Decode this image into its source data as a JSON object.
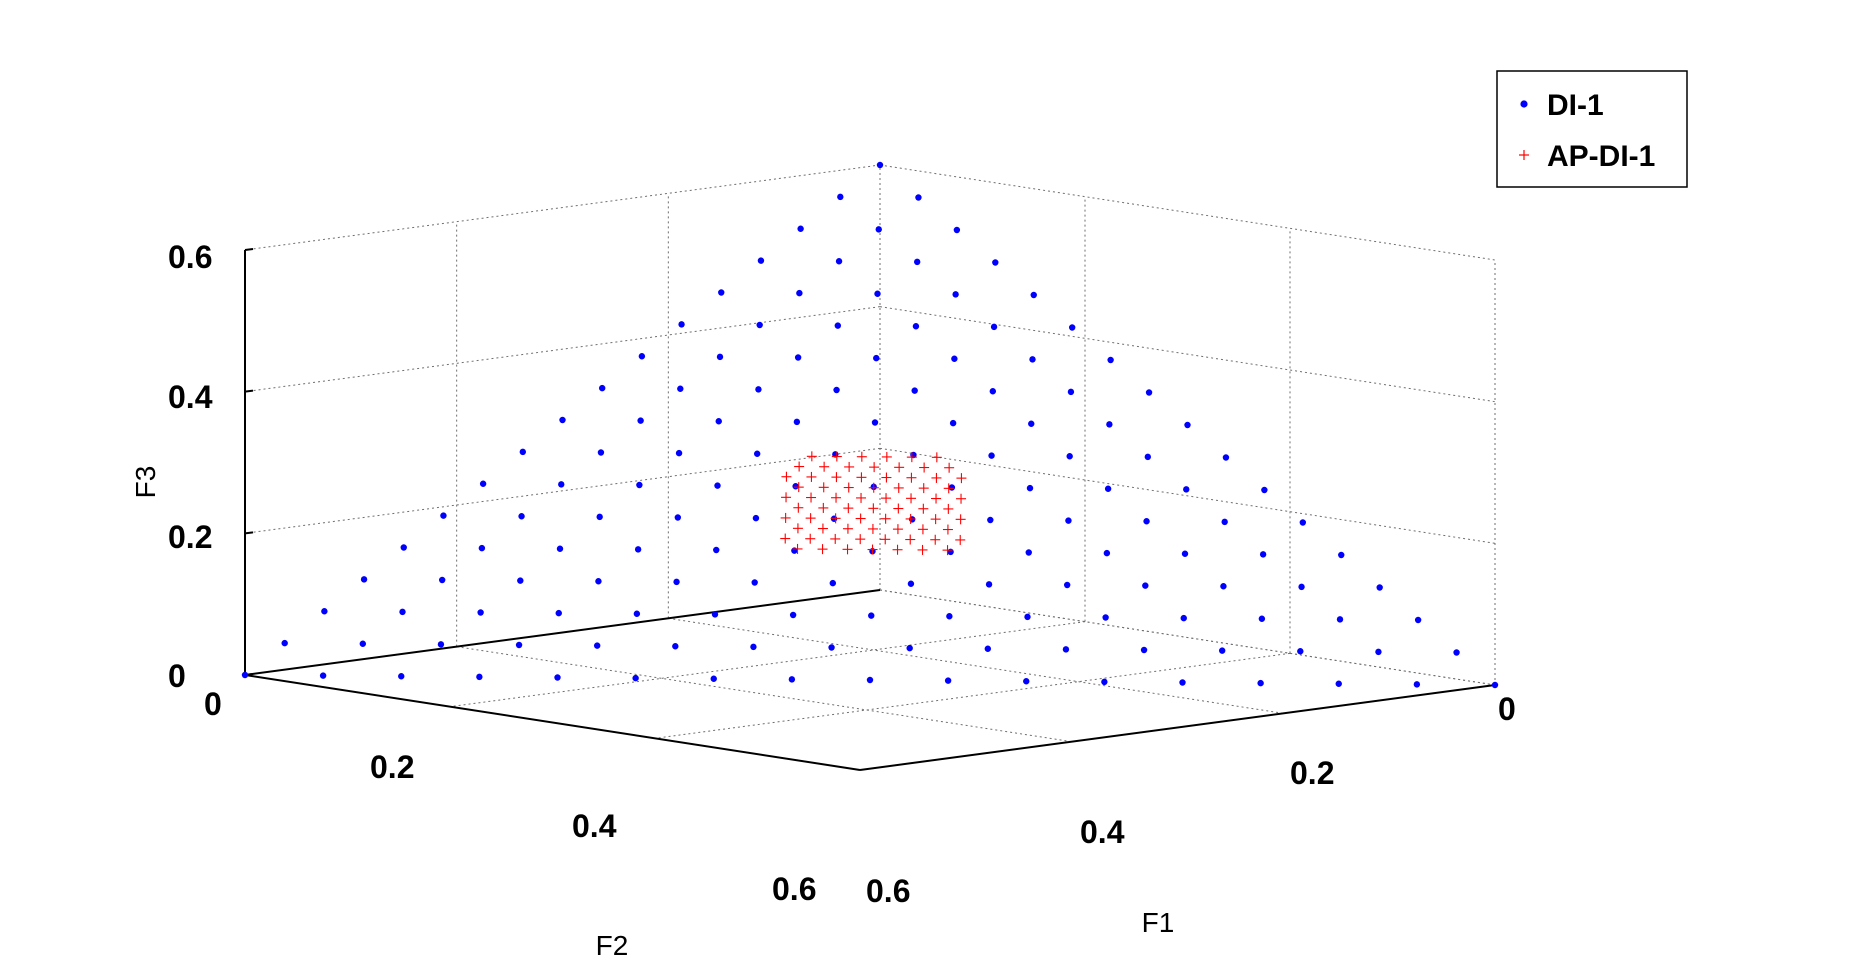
{
  "chart_data": {
    "type": "scatter",
    "title": "",
    "xlabel": "F1",
    "ylabel": "F2",
    "zlabel": "F3",
    "xlim": [
      0,
      0.6
    ],
    "ylim": [
      0,
      0.6
    ],
    "zlim": [
      0,
      0.6
    ],
    "x_ticks": [
      "0",
      "0.2",
      "0.4",
      "0.6"
    ],
    "y_ticks": [
      "0",
      "0.2",
      "0.4",
      "0.6"
    ],
    "z_ticks": [
      "0",
      "0.2",
      "0.4",
      "0.6"
    ],
    "grid": true,
    "legend_position": "top-right",
    "series": [
      {
        "name": "DI-1",
        "color": "#0000ff",
        "marker": "dot",
        "generator": "simplex lattice, step 1/16 over F1+F2+F3=0.6",
        "points": []
      },
      {
        "name": "AP-DI-1",
        "color": "#ff0000",
        "marker": "plus",
        "generator": "dense cluster near F1=F2=F3=0.2",
        "points": []
      }
    ]
  }
}
